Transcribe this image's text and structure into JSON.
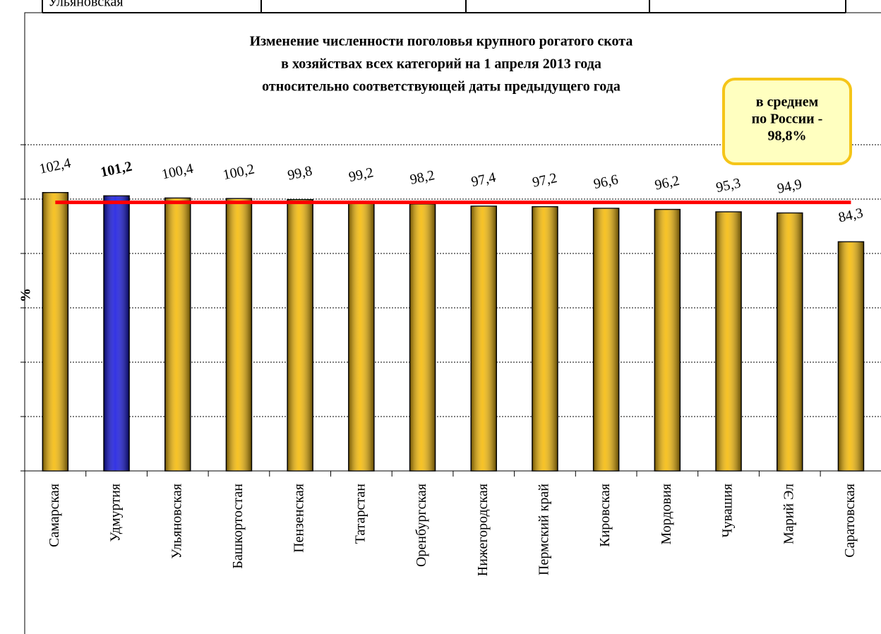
{
  "table_fragment": {
    "cells": [
      "Ульяновская"
    ]
  },
  "chart_data": {
    "type": "bar",
    "title": [
      "Изменение численности поголовья крупного рогатого скота",
      "в хозяйствах всех категорий на 1 апреля 2013 года",
      "относительно соответствующей даты предыдущего года"
    ],
    "y_label": "%",
    "categories": [
      "Самарская",
      "Удмуртия",
      "Ульяновская",
      "Башкортостан",
      "Пензенская",
      "Татарстан",
      "Оренбургская",
      "Нижегородская",
      "Пермский край",
      "Кировская",
      "Мордовия",
      "Чувашия",
      "Марий Эл",
      "Саратовская"
    ],
    "values": [
      102.4,
      101.2,
      100.4,
      100.2,
      99.8,
      99.2,
      98.2,
      97.4,
      97.2,
      96.6,
      96.2,
      95.3,
      94.9,
      84.3
    ],
    "value_labels": [
      "102,4",
      "101,2",
      "100,4",
      "100,2",
      "99,8",
      "99,2",
      "98,2",
      "97,4",
      "97,2",
      "96,6",
      "96,2",
      "95,3",
      "94,9",
      "84,3"
    ],
    "bold_labels": [
      false,
      true,
      false,
      false,
      false,
      false,
      false,
      false,
      false,
      false,
      false,
      false,
      false,
      false
    ],
    "colors": [
      "#f5b800",
      "#1010e0",
      "#f5b800",
      "#f5b800",
      "#f5b800",
      "#f5b800",
      "#f5b800",
      "#f5b800",
      "#f5b800",
      "#f5b800",
      "#f5b800",
      "#f5b800",
      "#f5b800",
      "#f5b800"
    ],
    "ylim": [
      0,
      120
    ],
    "yticks": [
      0,
      20,
      40,
      60,
      80,
      100,
      120
    ],
    "grid": true,
    "reference_line": {
      "value": 98.8,
      "color": "#ff0000"
    },
    "annotation": [
      "в среднем",
      "по России -",
      "98,8%"
    ]
  }
}
